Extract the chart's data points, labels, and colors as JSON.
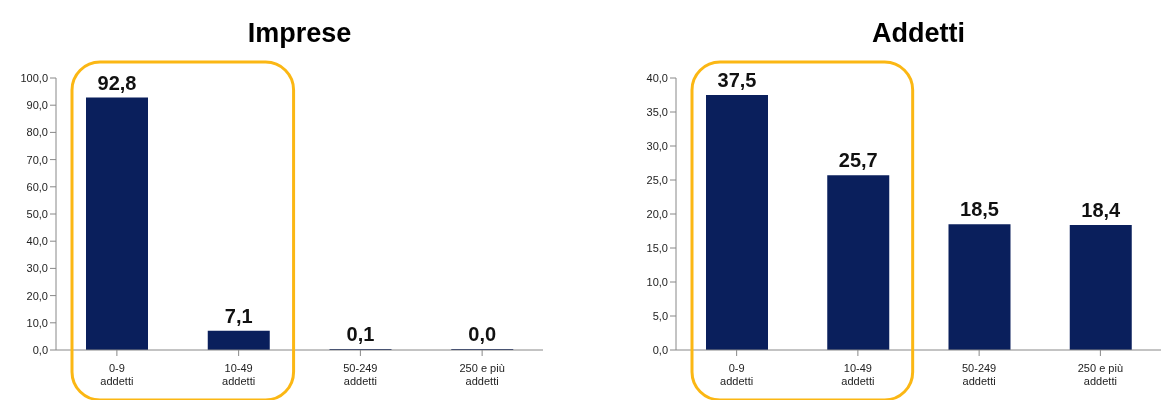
{
  "chart_data": [
    {
      "type": "bar",
      "title": "Imprese",
      "categories": [
        "0-9 addetti",
        "10-49 addetti",
        "50-249 addetti",
        "250 e più addetti"
      ],
      "values": [
        92.8,
        7.1,
        0.1,
        0.0
      ],
      "value_labels": [
        "92,8",
        "7,1",
        "0,1",
        "0,0"
      ],
      "color": "#0a1f5c",
      "ylim": [
        0,
        100
      ],
      "yticks": [
        {
          "value": 0,
          "label": "0,0"
        },
        {
          "value": 10,
          "label": "10,0"
        },
        {
          "value": 20,
          "label": "20,0"
        },
        {
          "value": 30,
          "label": "30,0"
        },
        {
          "value": 40,
          "label": "40,0"
        },
        {
          "value": 50,
          "label": "50,0"
        },
        {
          "value": 60,
          "label": "60,0"
        },
        {
          "value": 70,
          "label": "70,0"
        },
        {
          "value": 80,
          "label": "80,0"
        },
        {
          "value": 90,
          "label": "90,0"
        },
        {
          "value": 100,
          "label": "100,0"
        }
      ],
      "grid": false,
      "legend": false
    },
    {
      "type": "bar",
      "title": "Addetti",
      "categories": [
        "0-9 addetti",
        "10-49 addetti",
        "50-249 addetti",
        "250 e più addetti"
      ],
      "values": [
        37.5,
        25.7,
        18.5,
        18.4
      ],
      "value_labels": [
        "37,5",
        "25,7",
        "18,5",
        "18,4"
      ],
      "color": "#0a1f5c",
      "ylim": [
        0,
        40
      ],
      "yticks": [
        {
          "value": 0,
          "label": "0,0"
        },
        {
          "value": 5,
          "label": "5,0"
        },
        {
          "value": 10,
          "label": "10,0"
        },
        {
          "value": 15,
          "label": "15,0"
        },
        {
          "value": 20,
          "label": "20,0"
        },
        {
          "value": 25,
          "label": "25,0"
        },
        {
          "value": 30,
          "label": "30,0"
        },
        {
          "value": 35,
          "label": "35,0"
        },
        {
          "value": 40,
          "label": "40,0"
        }
      ],
      "grid": false,
      "legend": false
    }
  ]
}
